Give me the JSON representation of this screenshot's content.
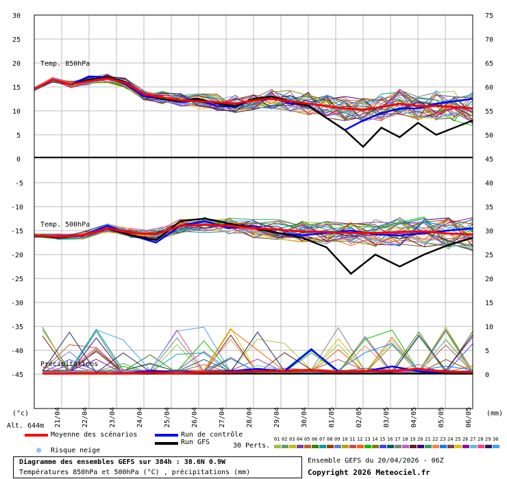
{
  "chart_data": [
    {
      "type": "line",
      "title": "Temp. 850hPa",
      "ylim": [
        0,
        30
      ],
      "left_ticks": [
        "30",
        "25",
        "20",
        "15",
        "10",
        "5",
        "0"
      ],
      "right_ticks": [
        "75",
        "70",
        "65",
        "60",
        "55",
        "50"
      ],
      "series": [
        {
          "name": "Moyenne des scénarios",
          "color": "#ff0000",
          "values": [
            14.5,
            16.5,
            15.5,
            16.2,
            16.8,
            15.8,
            13.5,
            12.8,
            12.2,
            12.0,
            11.8,
            11.5,
            12.2,
            12.5,
            12.0,
            11.5,
            11.0,
            10.5,
            10.2,
            10.8,
            11.5,
            11.0,
            11.0,
            10.8,
            10.5
          ]
        },
        {
          "name": "Run de contrôle",
          "color": "#0000ff",
          "values": [
            14.5,
            16.5,
            15.5,
            17.2,
            17.0,
            15.5,
            13.0,
            12.5,
            11.8,
            12.2,
            11.0,
            10.8,
            12.5,
            13.0,
            11.5,
            11.2,
            8.5,
            6.0,
            8.0,
            9.5,
            10.5,
            10.5,
            11.5,
            12.0,
            12.5
          ]
        },
        {
          "name": "Run GFS",
          "color": "#000000",
          "values": [
            14.5,
            16.5,
            15.5,
            16.5,
            17.0,
            16.0,
            13.5,
            12.5,
            12.0,
            12.5,
            11.5,
            11.0,
            12.5,
            13.0,
            12.0,
            11.0,
            8.5,
            6.0,
            2.5,
            6.5,
            4.5,
            7.5,
            5.0,
            6.5,
            8.0
          ]
        }
      ]
    },
    {
      "type": "line",
      "title": "Temp. 500hPa",
      "ylim": [
        -25,
        -10
      ],
      "left_ticks": [
        "-5",
        "-10",
        "-15",
        "-20",
        "-25",
        "-30",
        "-35",
        "-40",
        "-45"
      ],
      "right_ticks": [
        "45",
        "40",
        "35",
        "30",
        "25",
        "20",
        "15",
        "10",
        "5",
        "0"
      ],
      "series": [
        {
          "name": "Moyenne des scénarios",
          "color": "#ff0000",
          "values": [
            -16.0,
            -16.3,
            -16.0,
            -14.5,
            -15.5,
            -15.8,
            -14.0,
            -13.8,
            -14.0,
            -14.5,
            -14.8,
            -15.2,
            -15.3,
            -15.5,
            -15.5,
            -15.3,
            -15.2,
            -15.6,
            -15.8
          ]
        },
        {
          "name": "Run de contrôle",
          "color": "#0000ff",
          "values": [
            -16.0,
            -16.5,
            -16.0,
            -14.0,
            -16.0,
            -17.5,
            -14.0,
            -13.0,
            -14.5,
            -14.0,
            -15.5,
            -16.0,
            -15.5,
            -15.0,
            -15.8,
            -16.0,
            -15.5,
            -15.0,
            -14.5
          ]
        },
        {
          "name": "Run GFS",
          "color": "#000000",
          "values": [
            -16.0,
            -16.5,
            -16.0,
            -14.5,
            -16.0,
            -17.0,
            -13.0,
            -12.5,
            -13.5,
            -14.5,
            -15.5,
            -16.5,
            -18.5,
            -24.0,
            -20.0,
            -22.5,
            -20.0,
            -18.0,
            -16.5
          ]
        }
      ]
    },
    {
      "type": "line",
      "title": "Précipitations",
      "ylim": [
        0,
        20
      ],
      "series": [
        {
          "name": "Moyenne des scénarios",
          "color": "#ff0000",
          "values": [
            0,
            0,
            0,
            0,
            0.2,
            0,
            0.2,
            0.3,
            0.5,
            0.5,
            0.6,
            0.4,
            0.5,
            0.6,
            1.0,
            0.4,
            0.3
          ]
        },
        {
          "name": "Run de contrôle",
          "color": "#0000ff",
          "values": [
            0,
            0,
            0,
            0,
            0.5,
            0,
            0,
            0.5,
            1.0,
            0.5,
            5.0,
            0.5,
            0.5,
            1.5,
            0.5,
            0,
            0
          ]
        },
        {
          "name": "Run GFS",
          "color": "#000000",
          "values": [
            0,
            0,
            0,
            0,
            0,
            0,
            0,
            0,
            0,
            0,
            0,
            0,
            0,
            0,
            0,
            0,
            0
          ]
        }
      ]
    }
  ],
  "x_ticks": [
    "21/04",
    "22/04",
    "23/04",
    "24/04",
    "25/04",
    "26/04",
    "27/04",
    "28/04",
    "29/04",
    "30/04",
    "01/05",
    "02/05",
    "03/05",
    "04/05",
    "05/05",
    "06/05"
  ],
  "labels": {
    "left_unit": "(°c)",
    "right_unit": "(mm)",
    "altitude": "Alt. 644m",
    "panel1_title": "Temp. 850hPa",
    "panel2_title": "Temp. 500hPa",
    "panel3_title": "Précipitations"
  },
  "legend": {
    "mean": "Moyenne des scénarios",
    "control": "Run de contrôle",
    "gfs": "Run GFS",
    "snow": "Risque neige",
    "perts": "30 Perts.",
    "pert_numbers": [
      "01",
      "02",
      "03",
      "04",
      "05",
      "06",
      "07",
      "08",
      "09",
      "10",
      "11",
      "12",
      "13",
      "14",
      "15",
      "16",
      "17",
      "18",
      "19",
      "20",
      "21",
      "22",
      "23",
      "24",
      "25",
      "26",
      "27",
      "28",
      "29",
      "30"
    ],
    "pert_colors": [
      "#a0c040",
      "#60a060",
      "#c0c000",
      "#8040a0",
      "#c06020",
      "#408000",
      "#00a0a0",
      "#a04000",
      "#6080c0",
      "#c0a000",
      "#c05050",
      "#ff6000",
      "#00c000",
      "#808000",
      "#4040ff",
      "#006060",
      "#808080",
      "#c060c0",
      "#602020",
      "#400080",
      "#30a060",
      "#ff8040",
      "#0080ff",
      "#804040",
      "#e0c000",
      "#a000a0",
      "#60c0e0",
      "#ff4080",
      "#202060",
      "#40a0ff"
    ]
  },
  "info": {
    "title": "Diagramme des ensembles GEFS sur 384h : 38.6N 0.9W",
    "subtitle": "Températures 850hPa et 500hPa (°C) , précipitations (mm)",
    "run": "Ensemble GEFS du 20/04/2026 - 06Z",
    "copyright": "Copyright 2026 Meteociel.fr"
  }
}
